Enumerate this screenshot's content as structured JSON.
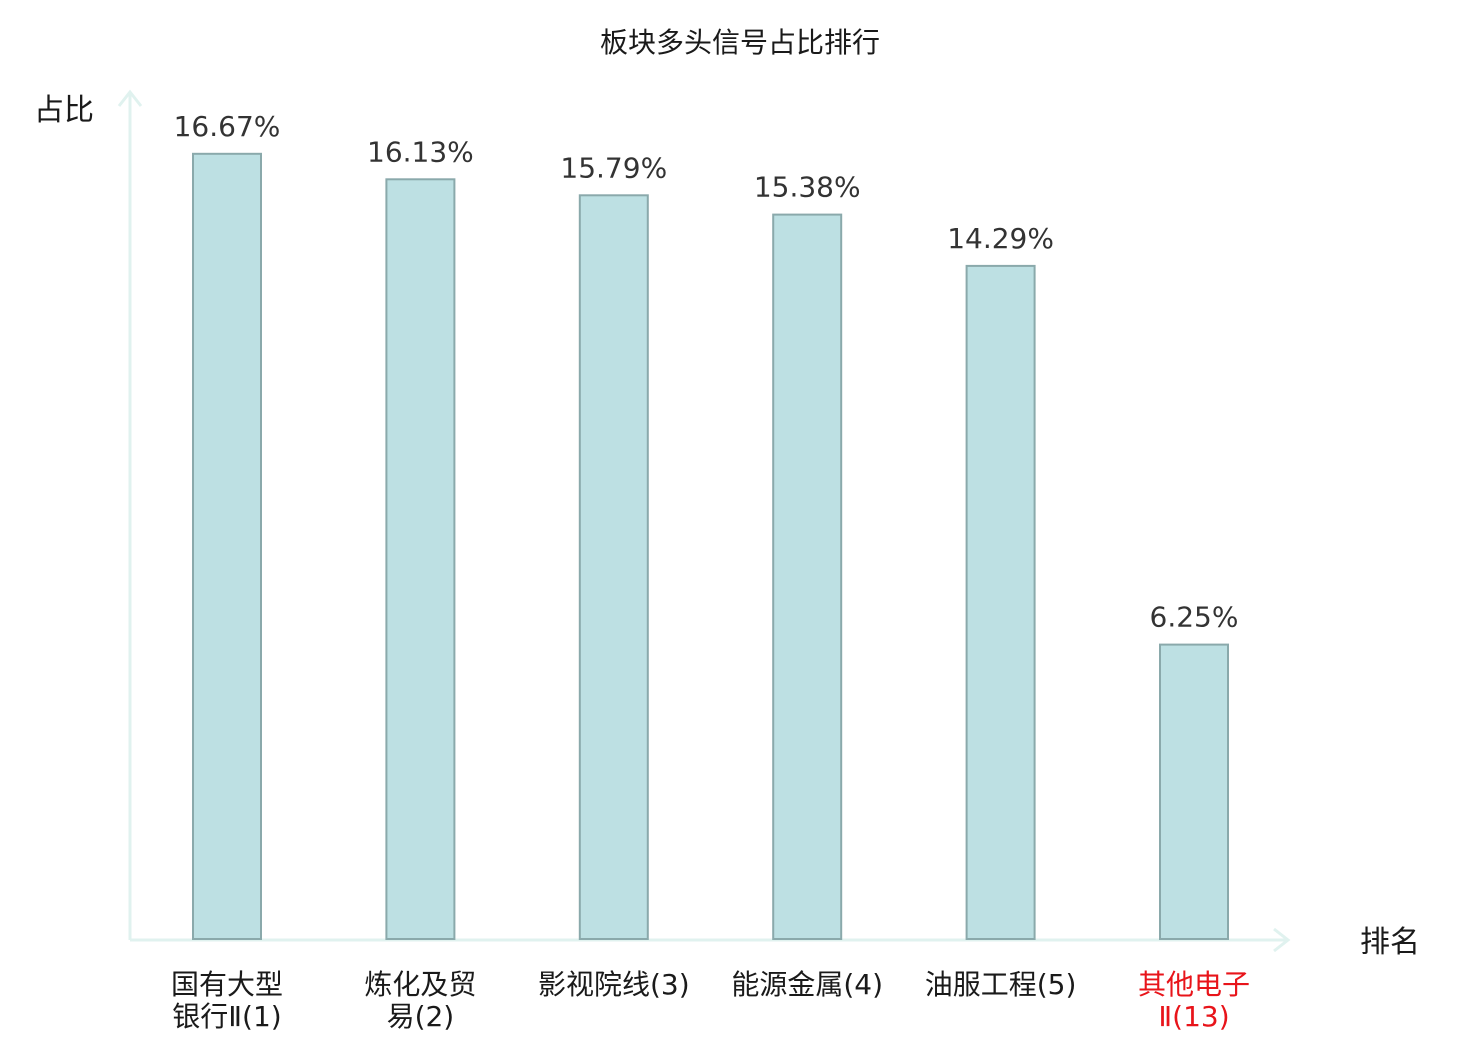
{
  "chart_data": {
    "type": "bar",
    "title": "板块多头信号占比排行",
    "ylabel": "占比",
    "xlabel": "排名",
    "categories": [
      [
        "国有大型",
        "银行Ⅱ(1)"
      ],
      [
        "炼化及贸",
        "易(2)"
      ],
      [
        "影视院线(3)"
      ],
      [
        "能源金属(4)"
      ],
      [
        "油服工程(5)"
      ],
      [
        "其他电子",
        "Ⅱ(13)"
      ]
    ],
    "values": [
      16.67,
      16.13,
      15.79,
      15.38,
      14.29,
      6.25
    ],
    "value_labels": [
      "16.67%",
      "16.13%",
      "15.79%",
      "15.38%",
      "14.29%",
      "6.25%"
    ],
    "highlight_index": 5,
    "ylim": [
      0,
      18
    ],
    "grid": false,
    "colors": {
      "bar_fill": "#bde0e3",
      "bar_stroke": "#8aa9ab",
      "axis": "#e0f2ef",
      "label": "#1a1a1a",
      "value_text": "#333333",
      "highlight": "#e8141a"
    }
  }
}
